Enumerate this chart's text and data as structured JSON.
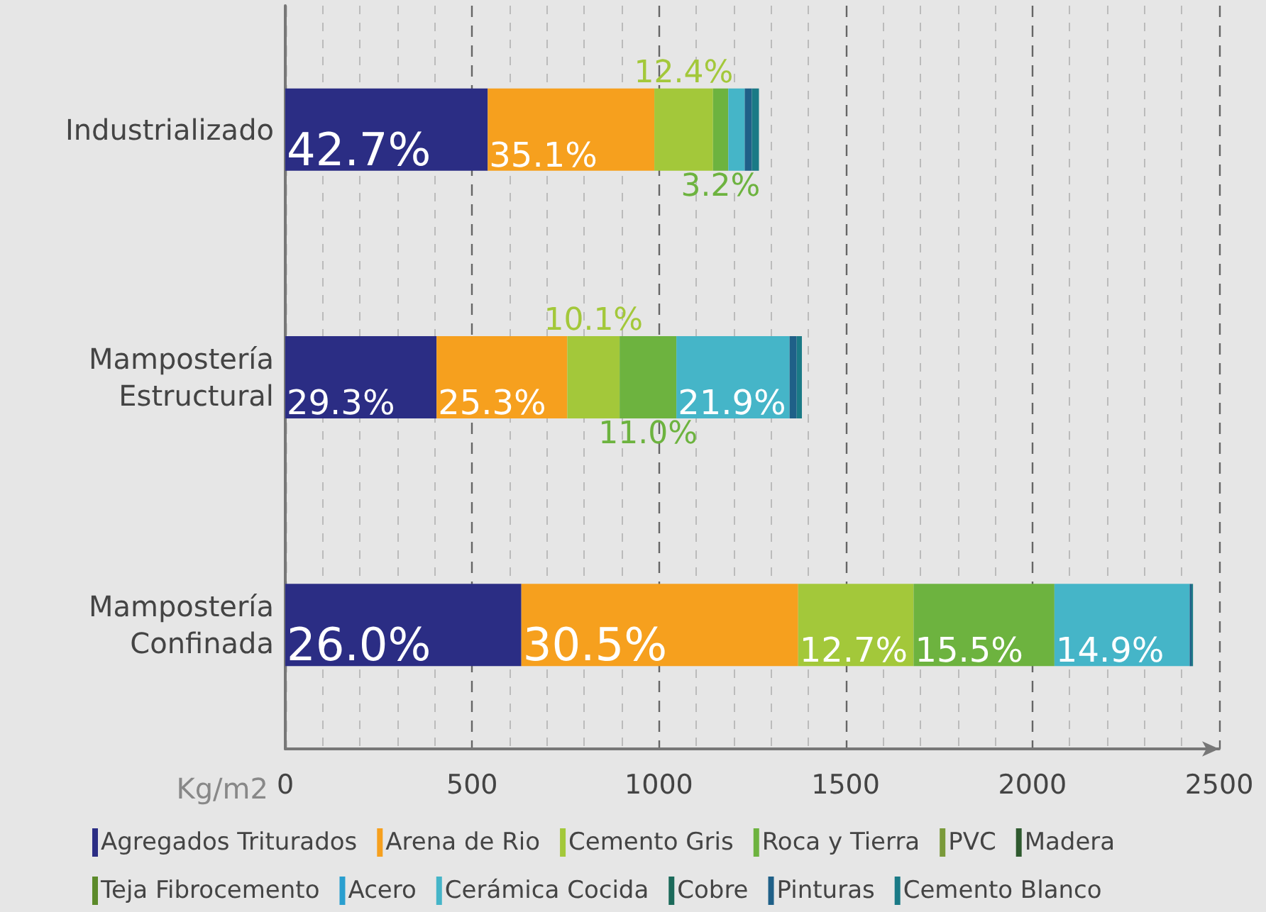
{
  "chart_data": {
    "type": "bar",
    "orientation": "horizontal",
    "stacked": true,
    "xlabel": "Kg/m2",
    "categories": [
      "Industrializado",
      "Mampostería Estructural",
      "Mampostería Confinada"
    ],
    "xlim": [
      0,
      2500
    ],
    "xticks": [
      0,
      500,
      1000,
      1500,
      2000,
      2500
    ],
    "grid": "x",
    "legend": "bottom",
    "series": [
      {
        "name": "Agregados Triturados",
        "color": "#2b2d84",
        "values": [
          542,
          405,
          632
        ]
      },
      {
        "name": "Arena de Rio",
        "color": "#f6a01e",
        "values": [
          446,
          350,
          741
        ]
      },
      {
        "name": "Cemento Gris",
        "color": "#a3c83a",
        "values": [
          157,
          140,
          309
        ]
      },
      {
        "name": "Roca y Tierra",
        "color": "#6db33f",
        "values": [
          41,
          152,
          377
        ]
      },
      {
        "name": "PVC",
        "color": "#7a9a3a",
        "values": [
          0,
          0,
          0
        ]
      },
      {
        "name": "Madera",
        "color": "#2f5a2f",
        "values": [
          0,
          0,
          0
        ]
      },
      {
        "name": "Teja Fibrocemento",
        "color": "#5c8a2a",
        "values": [
          0,
          0,
          0
        ]
      },
      {
        "name": "Acero",
        "color": "#2a9fcf",
        "values": [
          0,
          0,
          0
        ]
      },
      {
        "name": "Cerámica Cocida",
        "color": "#45b5c8",
        "values": [
          44,
          303,
          362
        ]
      },
      {
        "name": "Cobre",
        "color": "#1b6a5a",
        "values": [
          0,
          0,
          0
        ]
      },
      {
        "name": "Pinturas",
        "color": "#1f6088",
        "values": [
          19,
          19,
          5
        ]
      },
      {
        "name": "Cemento Blanco",
        "color": "#1a7a86",
        "values": [
          19,
          14,
          4
        ]
      }
    ],
    "annotations": [
      {
        "text": "42.7%",
        "x": 542,
        "y": "Industrializado"
      },
      {
        "text": "35.1%",
        "x": 988,
        "y": "Industrializado"
      },
      {
        "text": "12.4%",
        "x": 1145,
        "y": "Industrializado"
      },
      {
        "text": "3.2%",
        "x": 1186,
        "y": "Industrializado"
      },
      {
        "text": "29.3%",
        "x": 405,
        "y": "Mampostería Estructural"
      },
      {
        "text": "25.3%",
        "x": 755,
        "y": "Mampostería Estructural"
      },
      {
        "text": "10.1%",
        "x": 895,
        "y": "Mampostería Estructural"
      },
      {
        "text": "11.0%",
        "x": 1047,
        "y": "Mampostería Estructural"
      },
      {
        "text": "21.9%",
        "x": 1350,
        "y": "Mampostería Estructural"
      },
      {
        "text": "26.0%",
        "x": 632,
        "y": "Mampostería Confinada"
      },
      {
        "text": "30.5%",
        "x": 1373,
        "y": "Mampostería Confinada"
      },
      {
        "text": "12.7%",
        "x": 1682,
        "y": "Mampostería Confinada"
      },
      {
        "text": "15.5%",
        "x": 2059,
        "y": "Mampostería Confinada"
      },
      {
        "text": "14.9%",
        "x": 2421,
        "y": "Mampostería Confinada"
      }
    ]
  }
}
